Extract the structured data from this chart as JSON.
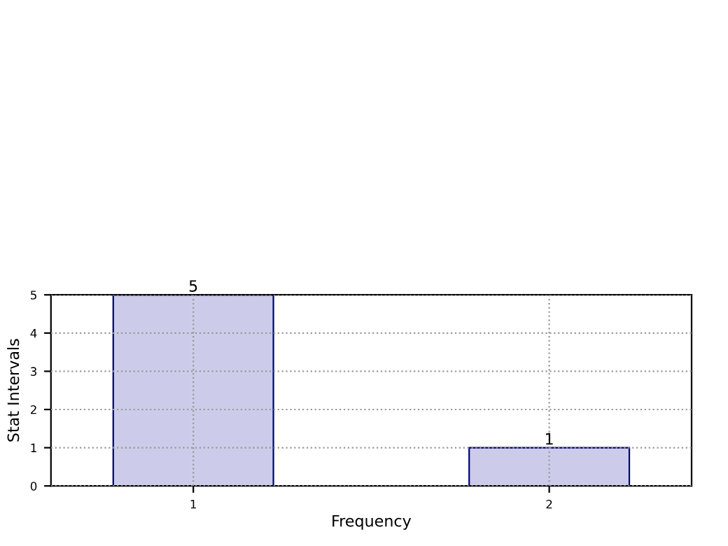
{
  "chart_data": {
    "type": "bar",
    "xlabel": "Frequency",
    "ylabel": "Stat Intervals",
    "categories": [
      "1",
      "2"
    ],
    "values": [
      5,
      1
    ],
    "color": "#ccccea",
    "ylim": [
      0,
      5
    ],
    "yticks": [
      0,
      1,
      2,
      3,
      4,
      5
    ],
    "grid": true,
    "data_labels": true
  }
}
